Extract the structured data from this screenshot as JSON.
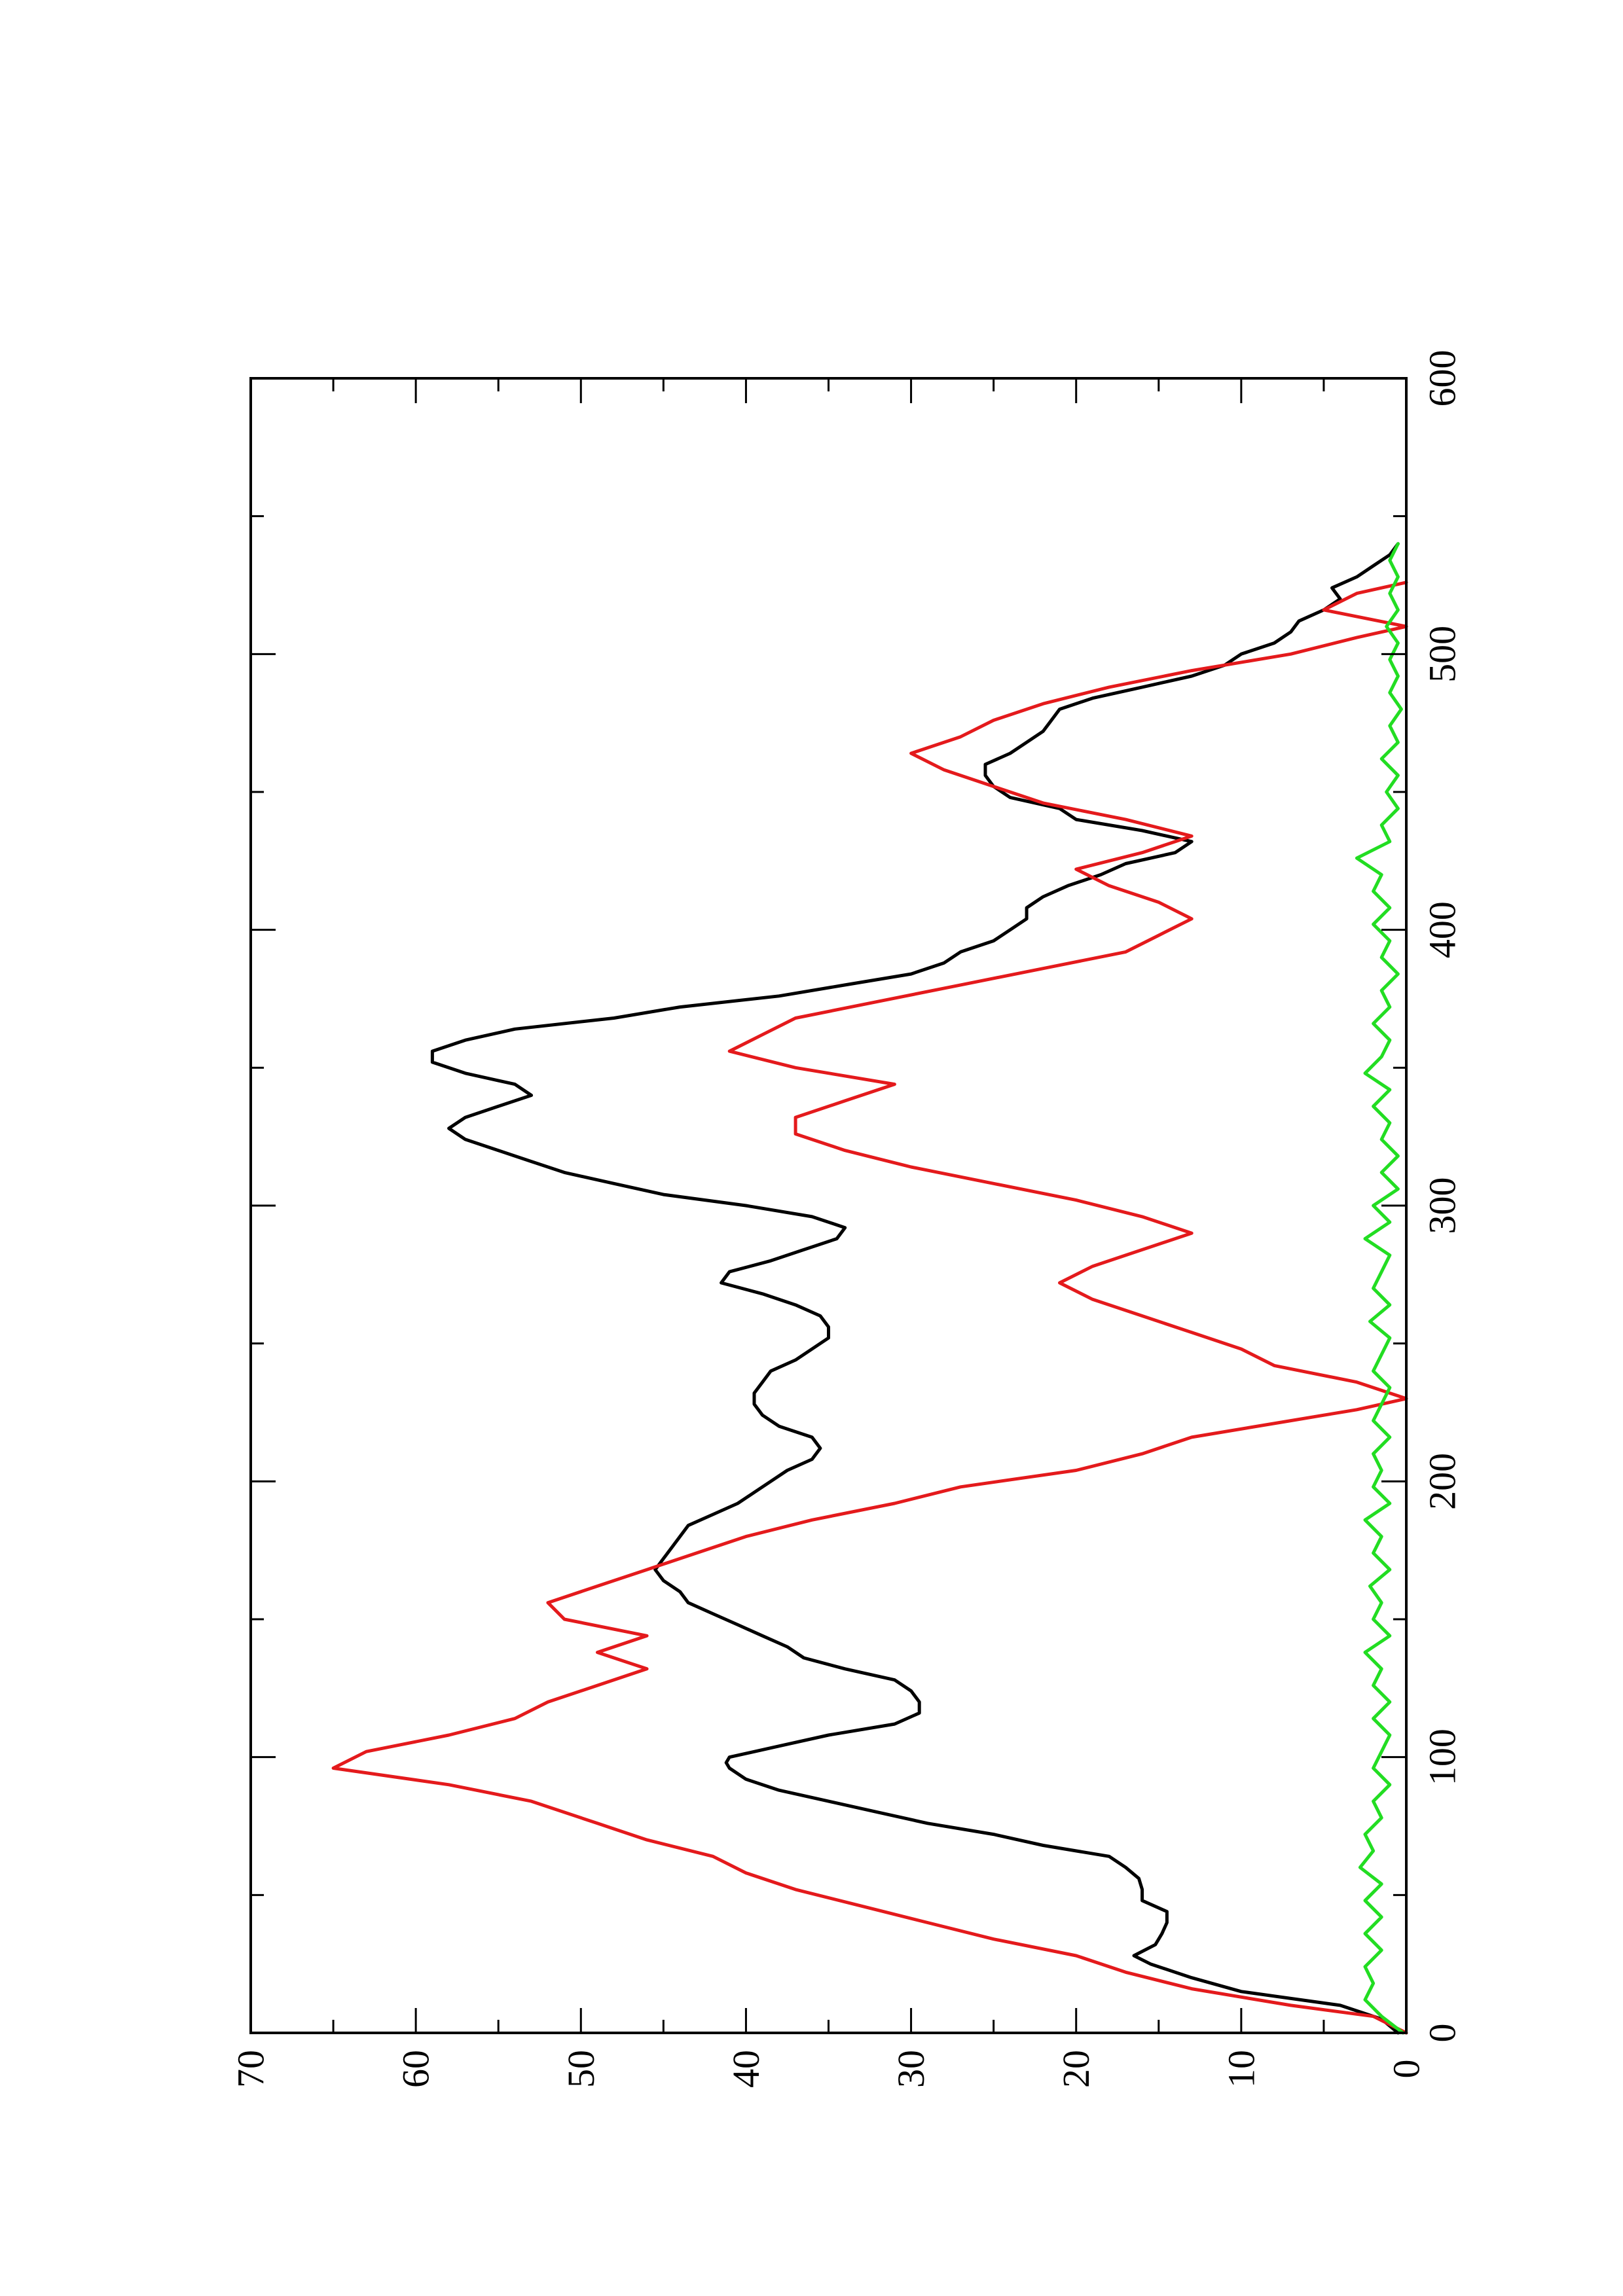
{
  "chart_data": {
    "type": "line",
    "title": "",
    "xlabel": "",
    "ylabel": "",
    "xlim": [
      0,
      600
    ],
    "ylim": [
      0,
      70
    ],
    "x_ticks": [
      0,
      100,
      200,
      300,
      400,
      500,
      600
    ],
    "x_minor_ticks": [
      50,
      150,
      250,
      350,
      450,
      550
    ],
    "y_ticks": [
      0,
      10,
      20,
      30,
      40,
      50,
      60,
      70
    ],
    "y_minor_ticks": [
      5,
      15,
      25,
      35,
      45,
      55,
      65
    ],
    "grid": false,
    "orientation": "rotated 90 degrees counter-clockwise",
    "series": [
      {
        "color": "#000000",
        "x": [
          0,
          5,
          10,
          15,
          20,
          25,
          28,
          32,
          36,
          40,
          44,
          48,
          52,
          56,
          60,
          64,
          68,
          72,
          76,
          80,
          84,
          88,
          92,
          96,
          98,
          100,
          104,
          108,
          112,
          116,
          120,
          124,
          128,
          132,
          136,
          140,
          144,
          148,
          152,
          156,
          160,
          164,
          168,
          172,
          176,
          180,
          184,
          188,
          192,
          196,
          200,
          204,
          208,
          212,
          216,
          220,
          224,
          228,
          232,
          236,
          240,
          244,
          248,
          252,
          256,
          260,
          264,
          268,
          272,
          276,
          280,
          284,
          288,
          292,
          296,
          300,
          304,
          308,
          312,
          316,
          320,
          324,
          328,
          332,
          336,
          340,
          344,
          348,
          352,
          356,
          360,
          364,
          368,
          372,
          376,
          380,
          384,
          388,
          392,
          396,
          400,
          404,
          408,
          412,
          416,
          420,
          424,
          428,
          432,
          436,
          440,
          444,
          448,
          452,
          456,
          460,
          464,
          468,
          472,
          476,
          480,
          484,
          488,
          492,
          496,
          500,
          504,
          508,
          512,
          516,
          520,
          524,
          528,
          532,
          536,
          540
        ],
        "y": [
          0.5,
          1.5,
          4,
          10,
          13,
          15.5,
          16.5,
          15.2,
          14.8,
          14.5,
          14.5,
          16,
          16,
          16.2,
          17,
          18,
          22,
          25,
          29,
          32,
          35,
          38,
          40,
          41,
          41.2,
          41,
          38,
          35,
          31,
          29.5,
          29.5,
          30,
          31,
          34,
          36.5,
          37.5,
          39,
          40.5,
          42,
          43.5,
          44,
          45,
          45.5,
          45,
          44.5,
          44,
          43.5,
          42,
          40.5,
          39.5,
          38.5,
          37.5,
          36,
          35.5,
          36,
          38,
          39,
          39.5,
          39.5,
          39,
          38.5,
          37,
          36,
          35,
          35,
          35.5,
          37,
          39,
          41.5,
          41,
          38.5,
          36.5,
          34.5,
          34,
          36,
          40,
          45,
          48,
          51,
          53,
          55,
          57,
          58,
          57,
          55,
          53,
          54,
          57,
          59,
          59,
          57,
          54,
          48,
          44,
          38,
          34,
          30,
          28,
          27,
          25,
          24,
          23,
          23,
          22,
          20.5,
          18.5,
          17,
          14,
          13,
          16,
          20,
          21,
          24,
          25,
          25.5,
          25.5,
          24,
          23,
          22,
          21.5,
          21,
          19,
          16,
          13,
          11,
          10,
          8,
          7,
          6.5,
          5,
          4,
          4.5,
          3,
          2,
          1,
          0.5
        ],
        "values": [
          0.5,
          1.5,
          4,
          10,
          13,
          15.5,
          16.5,
          15.2,
          14.8,
          14.5,
          14.5,
          16,
          16,
          16.2,
          17,
          18,
          22,
          25,
          29,
          32,
          35,
          38,
          40,
          41,
          41.2,
          41,
          38,
          35,
          31,
          29.5,
          29.5,
          30,
          31,
          34,
          36.5,
          37.5,
          39,
          40.5,
          42,
          43.5,
          44,
          45,
          45.5,
          45,
          44.5,
          44,
          43.5,
          42,
          40.5,
          39.5,
          38.5,
          37.5,
          36,
          35.5,
          36,
          38,
          39,
          39.5,
          39.5,
          39,
          38.5,
          37,
          36,
          35,
          35,
          35.5,
          37,
          39,
          41.5,
          41,
          38.5,
          36.5,
          34.5,
          34,
          36,
          40,
          45,
          48,
          51,
          53,
          55,
          57,
          58,
          57,
          55,
          53,
          54,
          57,
          59,
          59,
          57,
          54,
          48,
          44,
          38,
          34,
          30,
          28,
          27,
          25,
          24,
          23,
          23,
          22,
          20.5,
          18.5,
          17,
          14,
          13,
          16,
          20,
          21,
          24,
          25,
          25.5,
          25.5,
          24,
          23,
          22,
          21.5,
          21,
          19,
          16,
          13,
          11,
          10,
          8,
          7,
          6.5,
          5,
          4,
          4.5,
          3,
          2,
          1,
          0.5
        ]
      },
      {
        "color": "#e41a1c",
        "x": [
          0,
          6,
          10,
          16,
          22,
          28,
          34,
          40,
          46,
          52,
          58,
          64,
          70,
          76,
          84,
          90,
          96,
          102,
          108,
          114,
          120,
          126,
          132,
          138,
          144,
          150,
          156,
          162,
          168,
          174,
          180,
          186,
          192,
          198,
          204,
          210,
          216,
          222,
          226,
          230,
          236,
          242,
          248,
          254,
          260,
          266,
          272,
          278,
          284,
          290,
          296,
          302,
          308,
          314,
          320,
          326,
          332,
          338,
          344,
          350,
          356,
          362,
          368,
          374,
          380,
          386,
          392,
          398,
          404,
          410,
          416,
          422,
          428,
          434,
          440,
          446,
          452,
          458,
          464,
          470,
          476,
          482,
          488,
          494,
          500,
          506,
          510,
          516,
          522,
          526
        ],
        "y": [
          0,
          2,
          7,
          13,
          17,
          20,
          25,
          29,
          33,
          37,
          40,
          42,
          46,
          49,
          53,
          58,
          65,
          63,
          58,
          54,
          52,
          49,
          46,
          49,
          46,
          51,
          52,
          49,
          46,
          43,
          40,
          36,
          31,
          27,
          20,
          16,
          13,
          7,
          3,
          0,
          3,
          8,
          10,
          13,
          16,
          19,
          21,
          19,
          16,
          13,
          16,
          20,
          25,
          30,
          34,
          37,
          37,
          34,
          31,
          37,
          41,
          39,
          37,
          32,
          27,
          22,
          17,
          15,
          13,
          15,
          18,
          20,
          16,
          13,
          17,
          22,
          25,
          28,
          30,
          27,
          25,
          22,
          18,
          13,
          7,
          3,
          0,
          5,
          3,
          0
        ],
        "values": [
          0,
          2,
          7,
          13,
          17,
          20,
          25,
          29,
          33,
          37,
          40,
          42,
          46,
          49,
          53,
          58,
          65,
          63,
          58,
          54,
          52,
          49,
          46,
          49,
          46,
          51,
          52,
          49,
          46,
          43,
          40,
          36,
          31,
          27,
          20,
          16,
          13,
          7,
          3,
          0,
          3,
          8,
          10,
          13,
          16,
          19,
          21,
          19,
          16,
          13,
          16,
          20,
          25,
          30,
          34,
          37,
          37,
          34,
          31,
          37,
          41,
          39,
          37,
          32,
          27,
          22,
          17,
          15,
          13,
          15,
          18,
          20,
          16,
          13,
          17,
          22,
          25,
          28,
          30,
          27,
          25,
          22,
          18,
          13,
          7,
          3,
          0,
          5,
          3,
          0
        ]
      },
      {
        "color": "#22dd22",
        "x": [
          0,
          6,
          12,
          18,
          24,
          30,
          36,
          42,
          48,
          54,
          60,
          66,
          72,
          78,
          84,
          90,
          96,
          102,
          108,
          114,
          120,
          126,
          132,
          138,
          144,
          150,
          156,
          162,
          168,
          174,
          180,
          186,
          192,
          198,
          204,
          210,
          216,
          222,
          228,
          234,
          240,
          246,
          252,
          258,
          264,
          270,
          276,
          282,
          288,
          294,
          300,
          306,
          312,
          318,
          324,
          330,
          336,
          342,
          348,
          354,
          360,
          366,
          372,
          378,
          384,
          390,
          396,
          402,
          408,
          414,
          420,
          426,
          432,
          438,
          444,
          450,
          456,
          462,
          468,
          474,
          480,
          486,
          492,
          498,
          504,
          510,
          516,
          522,
          528,
          534,
          540
        ],
        "y": [
          0.2,
          1.5,
          2.5,
          2,
          2.5,
          1.5,
          2.5,
          1.5,
          2.5,
          1.5,
          2.8,
          2,
          2.5,
          1.5,
          2,
          1,
          2,
          1.5,
          1,
          2,
          1,
          2,
          1.5,
          2.5,
          1,
          2,
          1.5,
          2.2,
          1,
          2,
          1.5,
          2.5,
          1,
          2,
          1.5,
          2,
          1,
          2,
          1.5,
          1,
          2,
          1.5,
          1,
          2.2,
          1,
          2,
          1.5,
          1,
          2.5,
          1,
          2,
          0.5,
          1.5,
          0.5,
          1.5,
          1,
          2,
          1,
          2.5,
          1.5,
          1,
          2,
          1,
          1.5,
          0.5,
          1.5,
          1,
          2,
          1,
          2,
          1.5,
          3,
          1,
          1.5,
          0.5,
          1.2,
          0.5,
          1.5,
          0.5,
          1,
          0.3,
          1,
          0.5,
          1,
          0.5,
          1.2,
          0.5,
          1,
          0.5,
          1,
          0.5
        ],
        "values": [
          0.2,
          1.5,
          2.5,
          2,
          2.5,
          1.5,
          2.5,
          1.5,
          2.5,
          1.5,
          2.8,
          2,
          2.5,
          1.5,
          2,
          1,
          2,
          1.5,
          1,
          2,
          1,
          2,
          1.5,
          2.5,
          1,
          2,
          1.5,
          2.2,
          1,
          2,
          1.5,
          2.5,
          1,
          2,
          1.5,
          2,
          1,
          2,
          1.5,
          1,
          2,
          1.5,
          1,
          2.2,
          1,
          2,
          1.5,
          1,
          2.5,
          1,
          2,
          0.5,
          1.5,
          0.5,
          1.5,
          1,
          2,
          1,
          2.5,
          1.5,
          1,
          2,
          1,
          1.5,
          0.5,
          1.5,
          1,
          2,
          1,
          2,
          1.5,
          3,
          1,
          1.5,
          0.5,
          1.2,
          0.5,
          1.5,
          0.5,
          1,
          0.3,
          1,
          0.5,
          1,
          0.5,
          1.2,
          0.5,
          1,
          0.5,
          1,
          0.5
        ]
      }
    ]
  }
}
